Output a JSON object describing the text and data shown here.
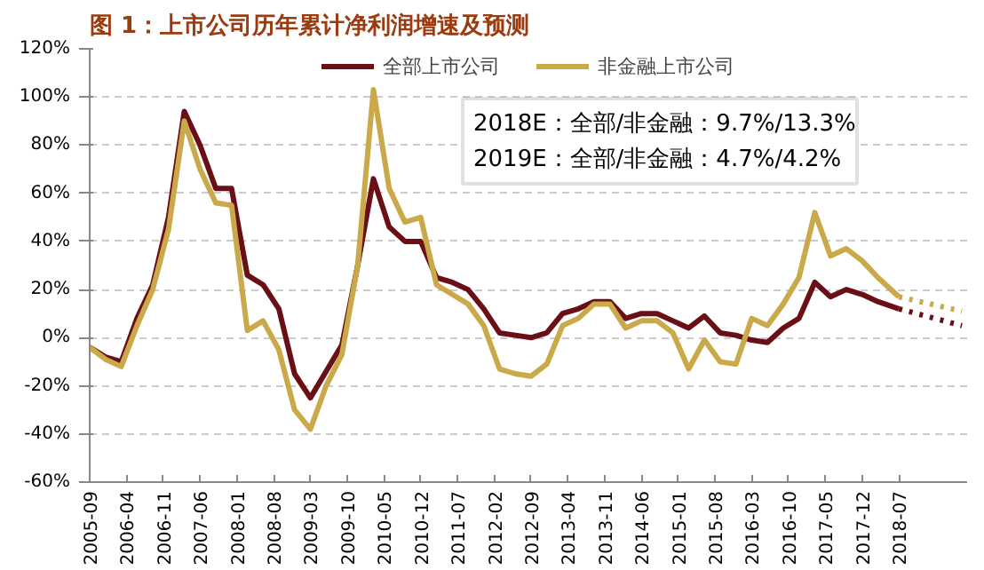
{
  "chart_data": {
    "type": "line",
    "title": "图 1：上市公司历年累计净利润增速及预测",
    "xlim": [
      "2005-09",
      "2019-08"
    ],
    "xticks": [
      "2005-09",
      "2006-04",
      "2006-11",
      "2007-06",
      "2008-01",
      "2008-08",
      "2009-03",
      "2009-10",
      "2010-05",
      "2010-12",
      "2011-07",
      "2012-02",
      "2012-09",
      "2013-04",
      "2013-11",
      "2014-06",
      "2015-01",
      "2015-08",
      "2016-03",
      "2016-10",
      "2017-05",
      "2017-12",
      "2018-07"
    ],
    "ylim": [
      -60,
      120
    ],
    "yticks": [
      {
        "value": -60,
        "label": "-60%"
      },
      {
        "value": -40,
        "label": "-40%"
      },
      {
        "value": -20,
        "label": "-20%"
      },
      {
        "value": 0,
        "label": "0%"
      },
      {
        "value": 20,
        "label": "20%"
      },
      {
        "value": 40,
        "label": "40%"
      },
      {
        "value": 60,
        "label": "60%"
      },
      {
        "value": 80,
        "label": "80%"
      },
      {
        "value": 100,
        "label": "100%"
      },
      {
        "value": 120,
        "label": "120%"
      }
    ],
    "grid": "y",
    "legend": "top",
    "line_style": "solid",
    "series": [
      {
        "name": "全部上市公司",
        "color": "#6b0f16",
        "x": [
          "2005-09",
          "2005-12",
          "2006-03",
          "2006-06",
          "2006-09",
          "2006-12",
          "2007-03",
          "2007-06",
          "2007-09",
          "2007-12",
          "2008-03",
          "2008-06",
          "2008-09",
          "2008-12",
          "2009-03",
          "2009-06",
          "2009-09",
          "2009-12",
          "2010-03",
          "2010-06",
          "2010-09",
          "2010-12",
          "2011-03",
          "2011-06",
          "2011-09",
          "2011-12",
          "2012-03",
          "2012-06",
          "2012-09",
          "2012-12",
          "2013-03",
          "2013-06",
          "2013-09",
          "2013-12",
          "2014-03",
          "2014-06",
          "2014-09",
          "2014-12",
          "2015-03",
          "2015-06",
          "2015-09",
          "2015-12",
          "2016-03",
          "2016-06",
          "2016-09",
          "2016-12",
          "2017-03",
          "2017-06",
          "2017-09",
          "2017-12",
          "2018-03",
          "2018-07"
        ],
        "values": [
          -4,
          -8,
          -10,
          8,
          22,
          50,
          94,
          80,
          62,
          62,
          26,
          22,
          12,
          -15,
          -25,
          -14,
          -3,
          30,
          66,
          46,
          40,
          40,
          25,
          23,
          20,
          12,
          2,
          1,
          0,
          2,
          10,
          12,
          15,
          15,
          8,
          10,
          10,
          7,
          4,
          9,
          2,
          1,
          -1,
          -2,
          4,
          8,
          23,
          17,
          20,
          18,
          15,
          12
        ]
      },
      {
        "name": "非金融上市公司",
        "color": "#c9a94a",
        "x": [
          "2005-09",
          "2005-12",
          "2006-03",
          "2006-06",
          "2006-09",
          "2006-12",
          "2007-03",
          "2007-06",
          "2007-09",
          "2007-12",
          "2008-03",
          "2008-06",
          "2008-09",
          "2008-12",
          "2009-03",
          "2009-06",
          "2009-09",
          "2009-12",
          "2010-03",
          "2010-06",
          "2010-09",
          "2010-12",
          "2011-03",
          "2011-06",
          "2011-09",
          "2011-12",
          "2012-03",
          "2012-06",
          "2012-09",
          "2012-12",
          "2013-03",
          "2013-06",
          "2013-09",
          "2013-12",
          "2014-03",
          "2014-06",
          "2014-09",
          "2014-12",
          "2015-03",
          "2015-06",
          "2015-09",
          "2015-12",
          "2016-03",
          "2016-06",
          "2016-09",
          "2016-12",
          "2017-03",
          "2017-06",
          "2017-09",
          "2017-12",
          "2018-03",
          "2018-07"
        ],
        "values": [
          -4,
          -9,
          -12,
          5,
          20,
          45,
          90,
          70,
          56,
          55,
          3,
          7,
          -5,
          -30,
          -38,
          -20,
          -7,
          30,
          103,
          62,
          48,
          50,
          22,
          18,
          14,
          5,
          -13,
          -15,
          -16,
          -11,
          5,
          8,
          14,
          14,
          4,
          7,
          7,
          2,
          -13,
          -1,
          -10,
          -11,
          8,
          5,
          14,
          25,
          52,
          34,
          37,
          32,
          25,
          17
        ]
      },
      {
        "color": "#6b0f16",
        "line_style": "dotted",
        "x": [
          "2018-07",
          "2019-07"
        ],
        "values": [
          12,
          5
        ]
      },
      {
        "color": "#c9a94a",
        "line_style": "dotted",
        "x": [
          "2018-07",
          "2019-07"
        ],
        "values": [
          17,
          11
        ]
      }
    ],
    "annotations": [
      "2018E：全部/非金融：9.7%/13.3%",
      "2019E：全部/非金融：4.7%/4.2%"
    ]
  }
}
